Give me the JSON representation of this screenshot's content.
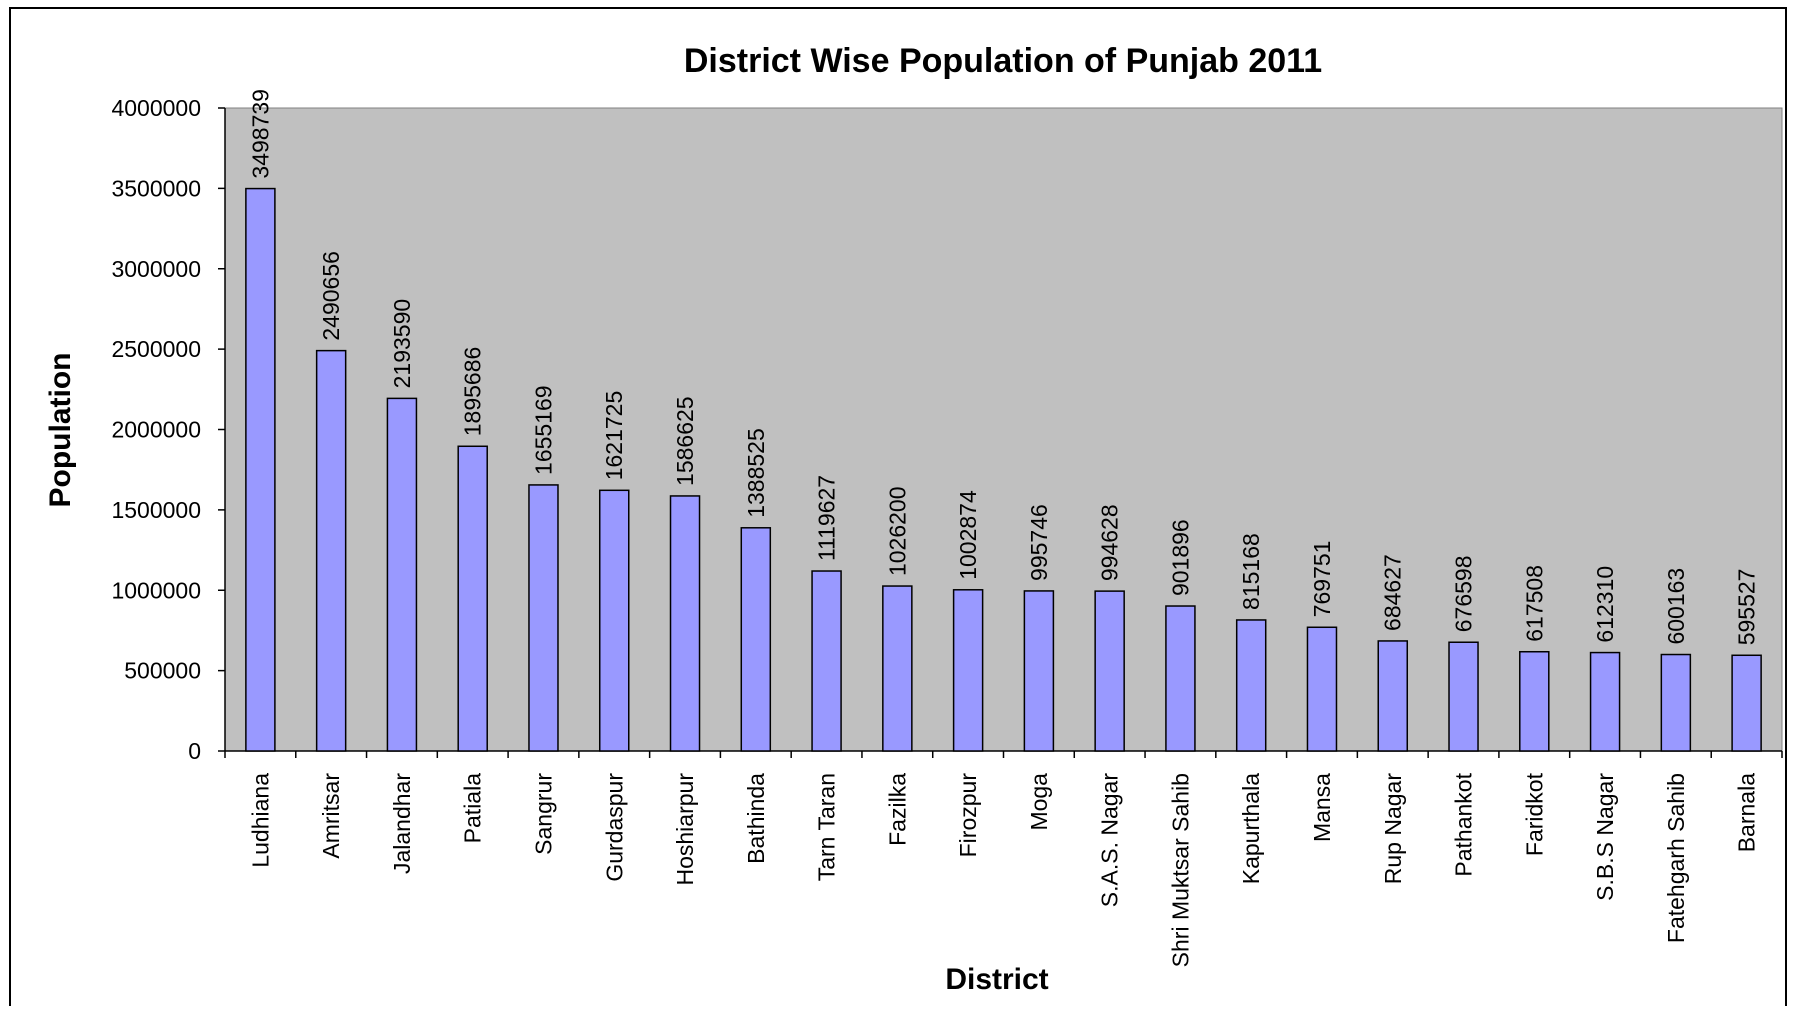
{
  "chart_data": {
    "type": "bar",
    "title": "District Wise Population of Punjab 2011",
    "xlabel": "District",
    "ylabel": "Population",
    "ylim": [
      0,
      4000000
    ],
    "yticks": [
      0,
      500000,
      1000000,
      1500000,
      2000000,
      2500000,
      3000000,
      3500000,
      4000000
    ],
    "grid": false,
    "legend": "none",
    "colors": {
      "bar": "#9999ff",
      "plot_area": "#c0c0c0",
      "outline": "#000000"
    },
    "categories": [
      "Ludhiana",
      "Amritsar",
      "Jalandhar",
      "Patiala",
      "Sangrur",
      "Gurdaspur",
      "Hoshiarpur",
      "Bathinda",
      "Tarn Taran",
      "Fazilka",
      "Firozpur",
      "Moga",
      "S.A.S. Nagar",
      "Shri Muktsar Sahib",
      "Kapurthala",
      "Mansa",
      "Rup Nagar",
      "Pathankot",
      "Faridkot",
      "S.B.S Nagar",
      "Fatehgarh Sahib",
      "Barnala"
    ],
    "values": [
      3498739,
      2490656,
      2193590,
      1895686,
      1655169,
      1621725,
      1586625,
      1388525,
      1119627,
      1026200,
      1002874,
      995746,
      994628,
      901896,
      815168,
      769751,
      684627,
      676598,
      617508,
      612310,
      600163,
      595527
    ]
  }
}
